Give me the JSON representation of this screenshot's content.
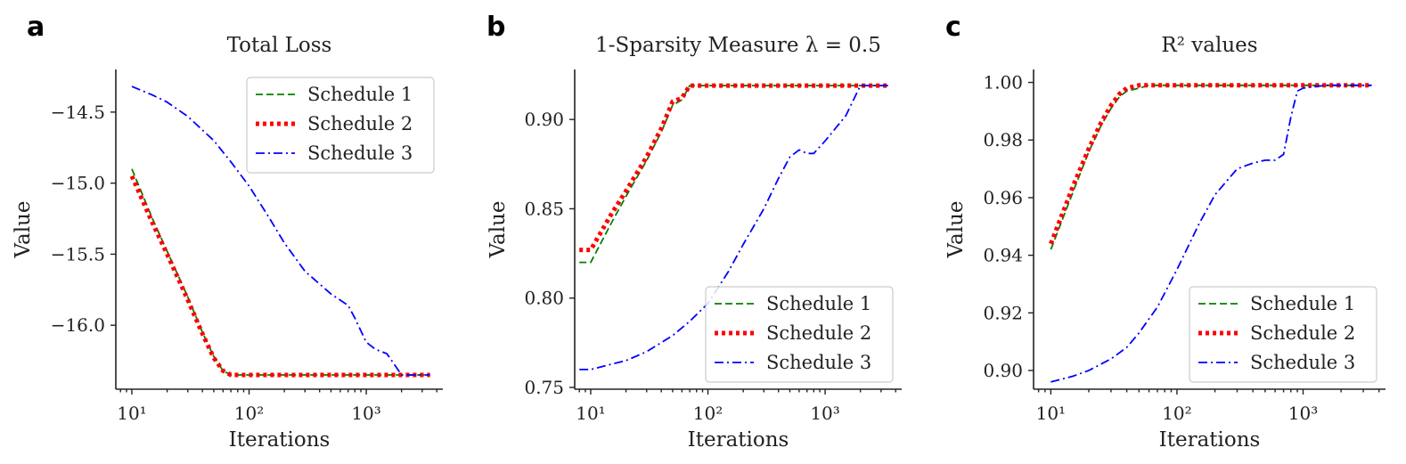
{
  "chart_data": [
    {
      "panel_letter": "a",
      "type": "line",
      "title": "Total Loss",
      "xlabel": "Iterations",
      "ylabel": "Value",
      "xscale": "log",
      "xlim": [
        7.3,
        4500
      ],
      "ylim": [
        -16.45,
        -14.2
      ],
      "xticks": [
        10,
        100,
        1000
      ],
      "xtick_labels": [
        "10¹",
        "10²",
        "10³"
      ],
      "yticks": [
        -16.0,
        -15.5,
        -15.0,
        -14.5
      ],
      "ytick_labels": [
        "−16.0",
        "−15.5",
        "−15.0",
        "−14.5"
      ],
      "legend": "top-right",
      "series": [
        {
          "name": "Schedule 1",
          "color": "#008000",
          "style": "dashed",
          "x": [
            10,
            15,
            20,
            30,
            40,
            50,
            60,
            70,
            80,
            100,
            200,
            500,
            1000,
            2000,
            3500
          ],
          "y": [
            -14.9,
            -15.25,
            -15.48,
            -15.8,
            -16.05,
            -16.22,
            -16.32,
            -16.35,
            -16.35,
            -16.35,
            -16.35,
            -16.35,
            -16.35,
            -16.35,
            -16.35
          ]
        },
        {
          "name": "Schedule 2",
          "color": "#ff0000",
          "style": "dotted",
          "x": [
            10,
            15,
            20,
            30,
            40,
            50,
            60,
            70,
            80,
            100,
            200,
            500,
            1000,
            2000,
            3500
          ],
          "y": [
            -14.95,
            -15.28,
            -15.5,
            -15.82,
            -16.06,
            -16.23,
            -16.32,
            -16.35,
            -16.35,
            -16.35,
            -16.35,
            -16.35,
            -16.35,
            -16.35,
            -16.35
          ]
        },
        {
          "name": "Schedule 3",
          "color": "#0000ff",
          "style": "dashdot",
          "x": [
            10,
            15,
            20,
            30,
            50,
            70,
            100,
            150,
            200,
            300,
            500,
            700,
            800,
            1000,
            1200,
            1500,
            2000,
            3500
          ],
          "y": [
            -14.32,
            -14.38,
            -14.43,
            -14.53,
            -14.7,
            -14.85,
            -15.02,
            -15.25,
            -15.42,
            -15.62,
            -15.78,
            -15.86,
            -15.95,
            -16.12,
            -16.17,
            -16.2,
            -16.35,
            -16.35
          ]
        }
      ]
    },
    {
      "panel_letter": "b",
      "type": "line",
      "title": "1-Sparsity Measure λ = 0.5",
      "xlabel": "Iterations",
      "ylabel": "Value",
      "xscale": "log",
      "xlim": [
        7.3,
        4500
      ],
      "ylim": [
        0.749,
        0.928
      ],
      "xticks": [
        10,
        100,
        1000
      ],
      "xtick_labels": [
        "10¹",
        "10²",
        "10³"
      ],
      "yticks": [
        0.75,
        0.8,
        0.85,
        0.9
      ],
      "ytick_labels": [
        "0.75",
        "0.80",
        "0.85",
        "0.90"
      ],
      "legend": "lower-right",
      "series": [
        {
          "name": "Schedule 1",
          "color": "#008000",
          "style": "dashed",
          "x": [
            8,
            10,
            15,
            20,
            30,
            40,
            50,
            60,
            70,
            100,
            1000,
            3500
          ],
          "y": [
            0.82,
            0.82,
            0.842,
            0.857,
            0.877,
            0.893,
            0.908,
            0.911,
            0.919,
            0.919,
            0.919,
            0.919
          ]
        },
        {
          "name": "Schedule 2",
          "color": "#ff0000",
          "style": "dotted",
          "x": [
            8,
            10,
            15,
            20,
            30,
            40,
            50,
            60,
            70,
            100,
            1000,
            3500
          ],
          "y": [
            0.827,
            0.827,
            0.847,
            0.86,
            0.879,
            0.895,
            0.91,
            0.912,
            0.919,
            0.919,
            0.919,
            0.919
          ]
        },
        {
          "name": "Schedule 3",
          "color": "#0000ff",
          "style": "dashdot",
          "x": [
            8,
            10,
            15,
            20,
            30,
            50,
            70,
            100,
            150,
            200,
            300,
            400,
            500,
            600,
            700,
            800,
            1000,
            1500,
            2000,
            3500
          ],
          "y": [
            0.76,
            0.76,
            0.763,
            0.765,
            0.77,
            0.779,
            0.787,
            0.797,
            0.815,
            0.83,
            0.85,
            0.867,
            0.879,
            0.883,
            0.881,
            0.881,
            0.888,
            0.902,
            0.919,
            0.919
          ]
        }
      ]
    },
    {
      "panel_letter": "c",
      "type": "line",
      "title": "R² values",
      "xlabel": "Iterations",
      "ylabel": "Value",
      "xscale": "log",
      "xlim": [
        7.3,
        4500
      ],
      "ylim": [
        0.8935,
        1.0045
      ],
      "xticks": [
        10,
        100,
        1000
      ],
      "xtick_labels": [
        "10¹",
        "10²",
        "10³"
      ],
      "yticks": [
        0.9,
        0.92,
        0.94,
        0.96,
        0.98,
        1.0
      ],
      "ytick_labels": [
        "0.90",
        "0.92",
        "0.94",
        "0.96",
        "0.98",
        "1.00"
      ],
      "legend": "lower-right",
      "series": [
        {
          "name": "Schedule 1",
          "color": "#008000",
          "style": "dashed",
          "x": [
            10,
            15,
            20,
            25,
            30,
            35,
            40,
            50,
            60,
            70,
            100,
            1000,
            3500
          ],
          "y": [
            0.942,
            0.962,
            0.976,
            0.985,
            0.991,
            0.995,
            0.997,
            0.998,
            0.999,
            0.999,
            0.999,
            0.999,
            0.999
          ]
        },
        {
          "name": "Schedule 2",
          "color": "#ff0000",
          "style": "dotted",
          "x": [
            10,
            15,
            20,
            25,
            30,
            35,
            40,
            50,
            60,
            70,
            100,
            1000,
            3500
          ],
          "y": [
            0.944,
            0.964,
            0.977,
            0.986,
            0.992,
            0.996,
            0.998,
            0.999,
            0.999,
            0.999,
            0.999,
            0.999,
            0.999
          ]
        },
        {
          "name": "Schedule 3",
          "color": "#0000ff",
          "style": "dashdot",
          "x": [
            10,
            15,
            20,
            30,
            40,
            50,
            70,
            100,
            150,
            200,
            300,
            400,
            500,
            600,
            700,
            800,
            900,
            1000,
            1500,
            3500
          ],
          "y": [
            0.896,
            0.898,
            0.9,
            0.904,
            0.908,
            0.913,
            0.922,
            0.935,
            0.951,
            0.961,
            0.97,
            0.972,
            0.973,
            0.973,
            0.975,
            0.988,
            0.997,
            0.998,
            0.999,
            0.999
          ]
        }
      ]
    }
  ]
}
